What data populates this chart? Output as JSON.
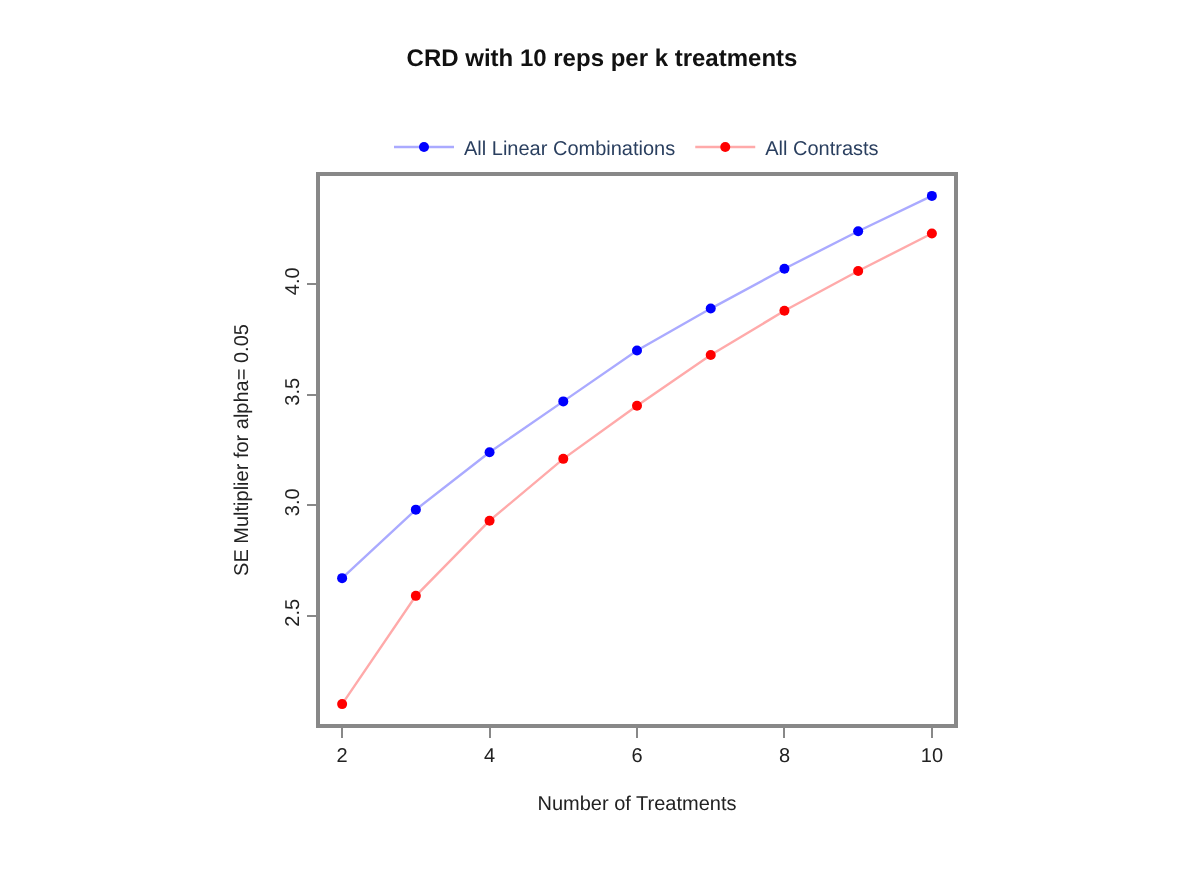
{
  "chart_data": {
    "type": "line",
    "title": "CRD with 10 reps per k treatments",
    "xlabel": "Number of Treatments",
    "ylabel": "SE Multiplier for alpha= 0.05",
    "x": [
      2,
      3,
      4,
      5,
      6,
      7,
      8,
      9,
      10
    ],
    "series": [
      {
        "name": "All Linear Combinations",
        "color": "#0000ff",
        "values": [
          2.67,
          2.98,
          3.24,
          3.47,
          3.7,
          3.89,
          4.07,
          4.24,
          4.4
        ]
      },
      {
        "name": "All Contrasts",
        "color": "#ff0000",
        "values": [
          2.1,
          2.59,
          2.93,
          3.21,
          3.45,
          3.68,
          3.88,
          4.06,
          4.23
        ]
      }
    ],
    "xlim": [
      1.7,
      10.3
    ],
    "xticks": [
      2,
      4,
      6,
      8,
      10
    ],
    "ylim": [
      2.01,
      4.49
    ],
    "yticks": [
      {
        "value": 2.5,
        "label": "2.5"
      },
      {
        "value": 3.0,
        "label": "3.0"
      },
      {
        "value": 3.5,
        "label": "3.5"
      },
      {
        "value": 4.0,
        "label": "4.0"
      }
    ],
    "legend": "top",
    "marker": "circle",
    "line_style": "solid"
  }
}
